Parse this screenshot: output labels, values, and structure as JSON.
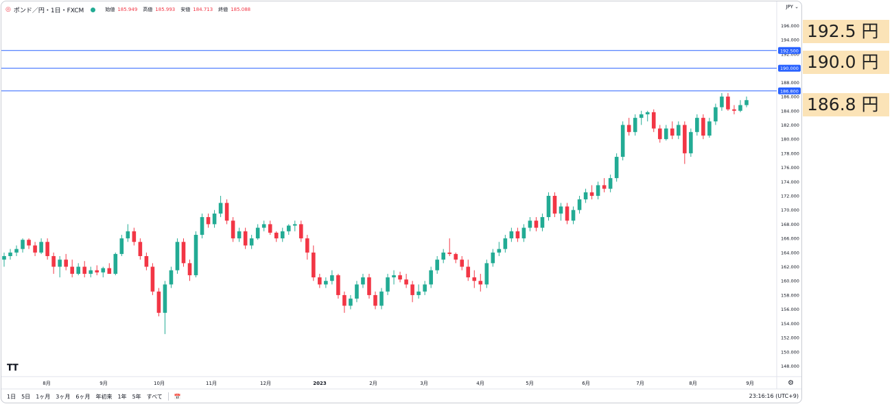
{
  "header": {
    "symbol": "ポンド／円・1日・FXCM",
    "open_label": "始値",
    "open_value": "185.949",
    "high_label": "高値",
    "high_value": "185.993",
    "low_label": "安値",
    "low_value": "184.713",
    "close_label": "終値",
    "close_value": "185.088"
  },
  "currency": "JPY",
  "timeframes": [
    "1日",
    "5日",
    "1ヶ月",
    "3ヶ月",
    "6ヶ月",
    "年初来",
    "1年",
    "5年",
    "すべて"
  ],
  "timezone": "23:16:16 (UTC+9)",
  "callouts": [
    "192.5 円",
    "190.0 円",
    "186.8 円"
  ],
  "chart_data": {
    "type": "candlestick",
    "y_ticks": [
      "196.000",
      "194.000",
      "192.000",
      "190.000",
      "188.000",
      "186.000",
      "184.000",
      "182.000",
      "180.000",
      "178.000",
      "176.000",
      "174.000",
      "172.000",
      "170.000",
      "168.000",
      "166.000",
      "164.000",
      "162.000",
      "160.000",
      "158.000",
      "156.000",
      "154.000",
      "152.000",
      "150.000",
      "148.000"
    ],
    "x_ticks": [
      "8月",
      "9月",
      "10月",
      "11月",
      "12月",
      "2023",
      "2月",
      "3月",
      "4月",
      "5月",
      "6月",
      "7月",
      "8月",
      "9月"
    ],
    "ylim": [
      146.5,
      197.5
    ],
    "horizontal_lines": [
      {
        "value": 192.5,
        "label": "192.500"
      },
      {
        "value": 190.0,
        "label": "190.000"
      },
      {
        "value": 186.8,
        "label": "186.800"
      }
    ],
    "up_color": "#22ab94",
    "down_color": "#f23645",
    "line_color": "#2962ff",
    "candles": [
      [
        163,
        164,
        162,
        163.5
      ],
      [
        163.5,
        164.5,
        163,
        164
      ],
      [
        164,
        165,
        163.5,
        164.5
      ],
      [
        164.5,
        166,
        164,
        165.8
      ],
      [
        165.8,
        166,
        164.5,
        165
      ],
      [
        165,
        165.5,
        163.5,
        164
      ],
      [
        164,
        166,
        163.8,
        165.5
      ],
      [
        165.5,
        166,
        163,
        163.5
      ],
      [
        163.5,
        164,
        161,
        162
      ],
      [
        162,
        163.5,
        160.5,
        163
      ],
      [
        163,
        163.8,
        161.5,
        162
      ],
      [
        162,
        163,
        160.5,
        161
      ],
      [
        161,
        162.5,
        160.8,
        162
      ],
      [
        162,
        162.8,
        160.5,
        161
      ],
      [
        161,
        162,
        160.5,
        161.5
      ],
      [
        161.5,
        162.2,
        160.8,
        161.2
      ],
      [
        161.2,
        162,
        160.5,
        161.8
      ],
      [
        161.8,
        162.5,
        161,
        161
      ],
      [
        161,
        164,
        160.8,
        163.8
      ],
      [
        163.8,
        166.5,
        163.5,
        166
      ],
      [
        166,
        168,
        165.5,
        167
      ],
      [
        167,
        167.5,
        165,
        165.5
      ],
      [
        165.5,
        166,
        163,
        163.5
      ],
      [
        163.5,
        164,
        161.5,
        162
      ],
      [
        162,
        162.5,
        158,
        158.5
      ],
      [
        158.5,
        159,
        155,
        155.5
      ],
      [
        155.5,
        160,
        152.5,
        159.5
      ],
      [
        159.5,
        162,
        159,
        161.5
      ],
      [
        161.5,
        166,
        161,
        165.5
      ],
      [
        165.5,
        166,
        162,
        162.5
      ],
      [
        162.5,
        163,
        160,
        160.8
      ],
      [
        160.8,
        167,
        160.5,
        166.5
      ],
      [
        166.5,
        169.5,
        166,
        169
      ],
      [
        169,
        169.5,
        167.5,
        168
      ],
      [
        168,
        170,
        167.5,
        169.5
      ],
      [
        169.5,
        172,
        169,
        171
      ],
      [
        171,
        171.5,
        168,
        168.5
      ],
      [
        168.5,
        169,
        165.5,
        166
      ],
      [
        166,
        167.5,
        165.5,
        167
      ],
      [
        167,
        167.5,
        164.5,
        165
      ],
      [
        165,
        166.5,
        164.5,
        166
      ],
      [
        166,
        168,
        165.8,
        167.5
      ],
      [
        167.5,
        168.5,
        167,
        168
      ],
      [
        168,
        168.5,
        166.5,
        166.8
      ],
      [
        166.8,
        167,
        165.5,
        166
      ],
      [
        166,
        167.5,
        165.5,
        167
      ],
      [
        167,
        168,
        166.5,
        167.8
      ],
      [
        167.8,
        168.5,
        167,
        168
      ],
      [
        168,
        168.5,
        165.5,
        166
      ],
      [
        166,
        166.5,
        163,
        164
      ],
      [
        164,
        165,
        160,
        160.5
      ],
      [
        160.5,
        161,
        159,
        159.5
      ],
      [
        159.5,
        160.5,
        159,
        160
      ],
      [
        160,
        161.5,
        159.5,
        160.8
      ],
      [
        160.8,
        161,
        157.5,
        158
      ],
      [
        158,
        158.5,
        155.5,
        156.5
      ],
      [
        156.5,
        158,
        156,
        157.5
      ],
      [
        157.5,
        160,
        157,
        159.5
      ],
      [
        159.5,
        161,
        159,
        160.5
      ],
      [
        160.5,
        161,
        157.5,
        158
      ],
      [
        158,
        158.5,
        156,
        156.5
      ],
      [
        156.5,
        159,
        156,
        158.5
      ],
      [
        158.5,
        161,
        158,
        160.5
      ],
      [
        160.5,
        161.5,
        159.5,
        160.8
      ],
      [
        160.8,
        161.3,
        159.8,
        160.2
      ],
      [
        160.2,
        161,
        159,
        159.5
      ],
      [
        159.5,
        160,
        157,
        158
      ],
      [
        158,
        159.5,
        157.5,
        158.5
      ],
      [
        158.5,
        160,
        158,
        159.5
      ],
      [
        159.5,
        162,
        159,
        161.5
      ],
      [
        161.5,
        163.5,
        161,
        163
      ],
      [
        163,
        164.5,
        162.5,
        164
      ],
      [
        164,
        166,
        163.5,
        163.8
      ],
      [
        163.8,
        164,
        162.5,
        163
      ],
      [
        163,
        163.5,
        161.5,
        162
      ],
      [
        162,
        163,
        160,
        160.5
      ],
      [
        160.5,
        161.5,
        159,
        160
      ],
      [
        160,
        161,
        158.5,
        159.5
      ],
      [
        159.5,
        163,
        159,
        162.5
      ],
      [
        162.5,
        164.5,
        162,
        164
      ],
      [
        164,
        165.5,
        163.5,
        164.5
      ],
      [
        164.5,
        166.5,
        164,
        166
      ],
      [
        166,
        167.5,
        165.5,
        167
      ],
      [
        167,
        167.5,
        165.5,
        166
      ],
      [
        166,
        168,
        165.5,
        167.5
      ],
      [
        167.5,
        169,
        167,
        168.5
      ],
      [
        168.5,
        169,
        167,
        167.5
      ],
      [
        167.5,
        169.5,
        167,
        169
      ],
      [
        169,
        172.5,
        168.5,
        172
      ],
      [
        172,
        172.5,
        169,
        169.5
      ],
      [
        169.5,
        171,
        168.5,
        170.5
      ],
      [
        170.5,
        171,
        168,
        168.5
      ],
      [
        168.5,
        170.5,
        168,
        170
      ],
      [
        170,
        172,
        169.5,
        171.5
      ],
      [
        171.5,
        173,
        171,
        172.5
      ],
      [
        172.5,
        173.5,
        171.5,
        172
      ],
      [
        172,
        174,
        171.5,
        173.5
      ],
      [
        173.5,
        174.5,
        172.5,
        173
      ],
      [
        173,
        175,
        172.5,
        174.5
      ],
      [
        174.5,
        178,
        174,
        177.5
      ],
      [
        177.5,
        182.5,
        177,
        182
      ],
      [
        182,
        183,
        180.5,
        181
      ],
      [
        181,
        183.5,
        180.5,
        183
      ],
      [
        183,
        184,
        182,
        183.5
      ],
      [
        183.5,
        184,
        182.5,
        183.8
      ],
      [
        183.8,
        184.2,
        181,
        181.5
      ],
      [
        181.5,
        182,
        179.5,
        180
      ],
      [
        180,
        182,
        179.8,
        181.5
      ],
      [
        181.5,
        182.5,
        180,
        180.5
      ],
      [
        180.5,
        182.5,
        180,
        182
      ],
      [
        182,
        182.5,
        176.5,
        178
      ],
      [
        178,
        181.5,
        177.5,
        181
      ],
      [
        181,
        183.5,
        180.5,
        183
      ],
      [
        183,
        183.5,
        180,
        180.5
      ],
      [
        180.5,
        183,
        180.2,
        182.5
      ],
      [
        182.5,
        185,
        182,
        184.5
      ],
      [
        184.5,
        186.5,
        184,
        186
      ],
      [
        186,
        186.5,
        184,
        184.2
      ],
      [
        184.2,
        184.8,
        183.5,
        184
      ],
      [
        184,
        185.5,
        183.8,
        184.8
      ],
      [
        184.8,
        186,
        184.5,
        185.5
      ]
    ]
  }
}
